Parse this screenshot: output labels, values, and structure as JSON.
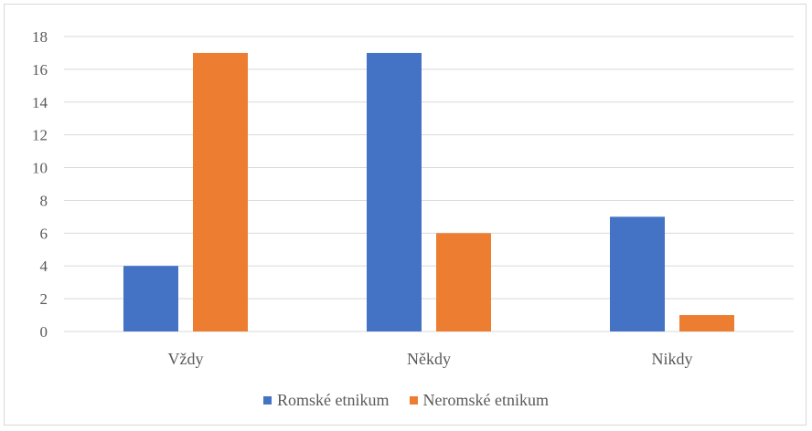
{
  "chart_data": {
    "type": "bar",
    "categories": [
      "Vždy",
      "Někdy",
      "Nikdy"
    ],
    "series": [
      {
        "name": "Romské etnikum",
        "values": [
          4,
          17,
          7
        ],
        "color": "#4472c4"
      },
      {
        "name": "Neromské etnikum",
        "values": [
          17,
          6,
          1
        ],
        "color": "#ed7d31"
      }
    ],
    "ylim": [
      0,
      18
    ],
    "yticks": [
      "0",
      "2",
      "4",
      "6",
      "8",
      "10",
      "12",
      "14",
      "16",
      "18"
    ],
    "grid": true,
    "legend_position": "bottom"
  }
}
